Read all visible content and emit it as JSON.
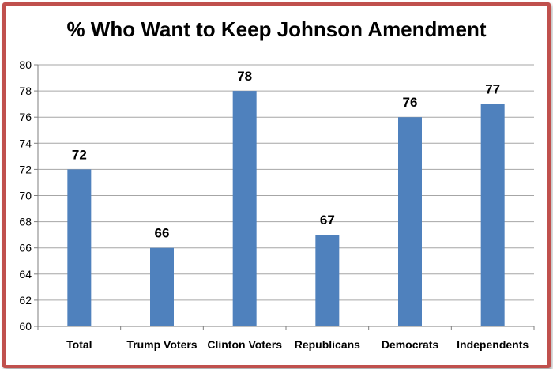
{
  "chart_data": {
    "type": "bar",
    "title": "% Who Want to Keep Johnson Amendment",
    "categories": [
      "Total",
      "Trump Voters",
      "Clinton Voters",
      "Republicans",
      "Democrats",
      "Independents"
    ],
    "values": [
      72,
      66,
      78,
      67,
      76,
      77
    ],
    "data_labels": [
      "72",
      "66",
      "78",
      "67",
      "76",
      "77"
    ],
    "ylim": [
      60,
      80
    ],
    "yticks": [
      60,
      62,
      64,
      66,
      68,
      70,
      72,
      74,
      76,
      78,
      80
    ],
    "grid": true,
    "legend": "none",
    "xlabel": "",
    "ylabel": "",
    "colors": {
      "bar": "#4f81bd",
      "border": "#c0504d",
      "grid": "#a6a6a6"
    }
  }
}
